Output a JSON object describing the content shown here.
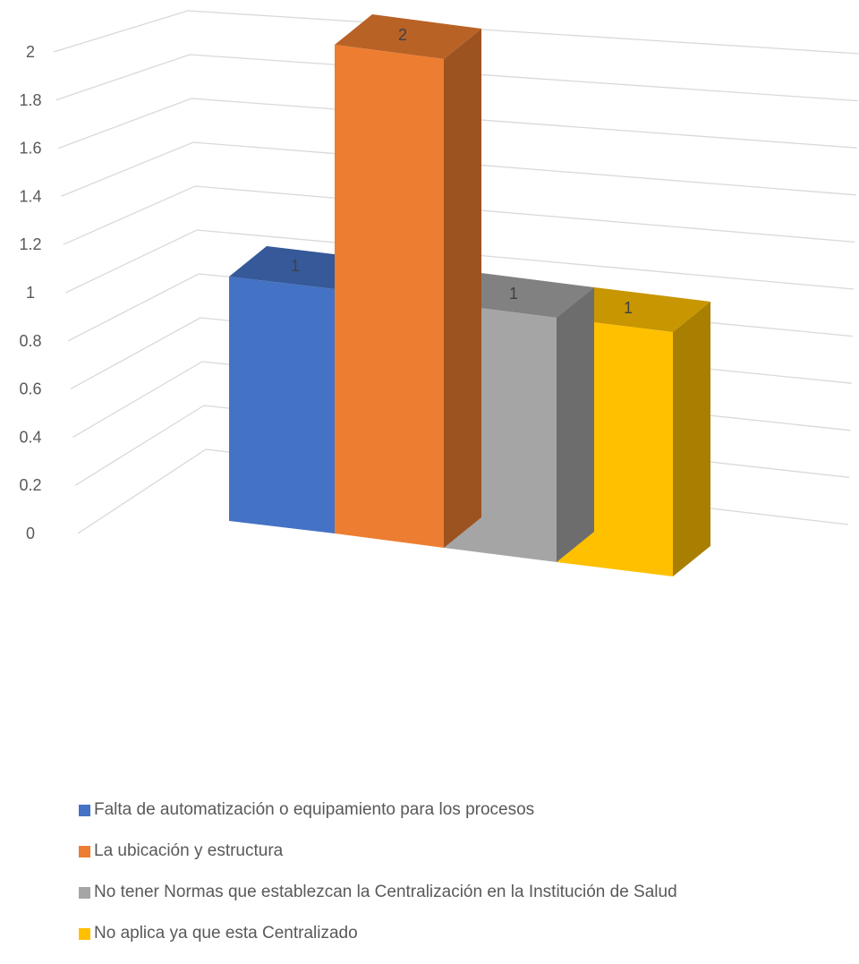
{
  "chart_data": {
    "type": "bar",
    "title": "",
    "xlabel": "",
    "ylabel": "",
    "ylim": [
      0,
      2
    ],
    "yticks": [
      "0",
      "0.2",
      "0.4",
      "0.6",
      "0.8",
      "1",
      "1.2",
      "1.4",
      "1.6",
      "1.8",
      "2"
    ],
    "grid": true,
    "legend_position": "bottom",
    "series": [
      {
        "name": "Falta de automatización o equipamiento para los procesos",
        "value": 1,
        "label": "1",
        "color": "#4472C4"
      },
      {
        "name": "La ubicación y estructura",
        "value": 2,
        "label": "2",
        "color": "#ED7D31"
      },
      {
        "name": "No tener Normas que establezcan la Centralización en la Institución de Salud",
        "value": 1,
        "label": "1",
        "color": "#A5A5A5"
      },
      {
        "name": "No aplica ya que esta Centralizado",
        "value": 1,
        "label": "1",
        "color": "#FFC000"
      }
    ]
  }
}
